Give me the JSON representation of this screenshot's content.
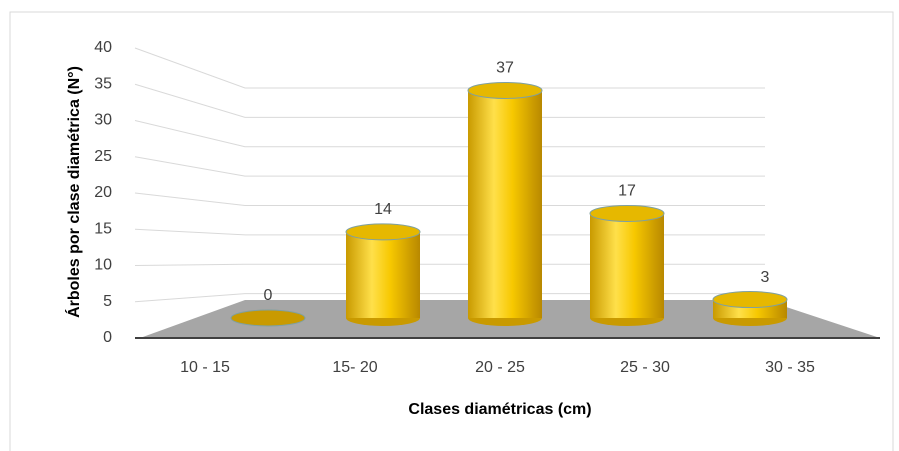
{
  "chart_data": {
    "type": "bar3d",
    "categories": [
      "10 - 15",
      "15- 20",
      "20 - 25",
      "25 - 30",
      "30 - 35"
    ],
    "values": [
      0,
      14,
      37,
      17,
      3
    ],
    "color": "#f2c200",
    "xlabel": "Clases diamétricas (cm)",
    "ylabel": "Árboles por clase diamétrica (N°)",
    "ylim": [
      0,
      40
    ],
    "yticks": [
      0,
      5,
      10,
      15,
      20,
      25,
      30,
      35,
      40
    ],
    "grid": true
  }
}
